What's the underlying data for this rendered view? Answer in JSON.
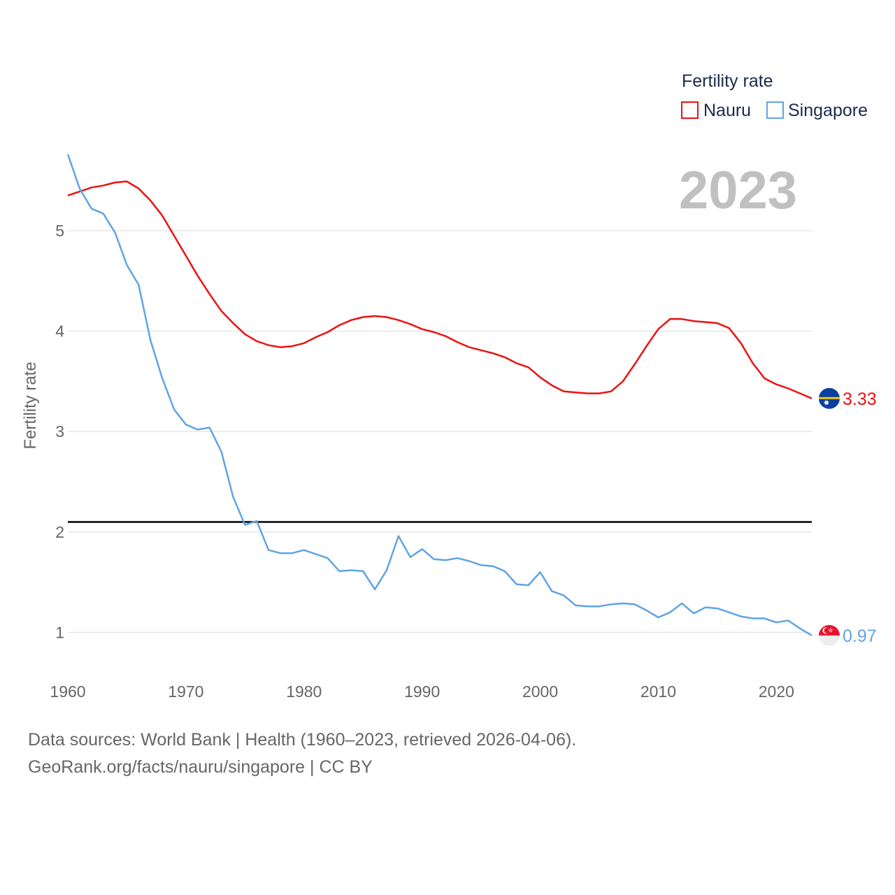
{
  "chart_data": {
    "type": "line",
    "ylabel": "Fertility rate",
    "xlabel": "",
    "year_label": "2023",
    "legend": {
      "title": "Fertility rate",
      "position": "top-right"
    },
    "xlim": [
      1960,
      2023
    ],
    "ylim": [
      0.6,
      5.8
    ],
    "x_ticks": [
      1960,
      1970,
      1980,
      1990,
      2000,
      2010,
      2020
    ],
    "y_ticks": [
      1,
      2,
      3,
      4,
      5
    ],
    "reference_line": {
      "value": 2.1,
      "color": "#000000"
    },
    "x": [
      1960,
      1961,
      1962,
      1963,
      1964,
      1965,
      1966,
      1967,
      1968,
      1969,
      1970,
      1971,
      1972,
      1973,
      1974,
      1975,
      1976,
      1977,
      1978,
      1979,
      1980,
      1981,
      1982,
      1983,
      1984,
      1985,
      1986,
      1987,
      1988,
      1989,
      1990,
      1991,
      1992,
      1993,
      1994,
      1995,
      1996,
      1997,
      1998,
      1999,
      2000,
      2001,
      2002,
      2003,
      2004,
      2005,
      2006,
      2007,
      2008,
      2009,
      2010,
      2011,
      2012,
      2013,
      2014,
      2015,
      2016,
      2017,
      2018,
      2019,
      2020,
      2021,
      2022,
      2023
    ],
    "series": [
      {
        "name": "Nauru",
        "color": "#ee1111",
        "end_label": "3.33",
        "flag": "nauru-flag",
        "values": [
          5.35,
          5.39,
          5.43,
          5.45,
          5.48,
          5.49,
          5.42,
          5.3,
          5.15,
          4.95,
          4.75,
          4.55,
          4.37,
          4.2,
          4.08,
          3.97,
          3.9,
          3.86,
          3.84,
          3.85,
          3.88,
          3.94,
          3.99,
          4.06,
          4.11,
          4.14,
          4.15,
          4.14,
          4.11,
          4.07,
          4.02,
          3.99,
          3.95,
          3.89,
          3.84,
          3.81,
          3.78,
          3.74,
          3.68,
          3.64,
          3.54,
          3.46,
          3.4,
          3.39,
          3.38,
          3.38,
          3.4,
          3.5,
          3.67,
          3.85,
          4.02,
          4.12,
          4.12,
          4.1,
          4.09,
          4.08,
          4.03,
          3.88,
          3.68,
          3.53,
          3.47,
          3.43,
          3.38,
          3.33
        ]
      },
      {
        "name": "Singapore",
        "color": "#5fa4e5",
        "end_label": "0.97",
        "flag": "singapore-flag",
        "values": [
          5.76,
          5.42,
          5.22,
          5.17,
          4.98,
          4.66,
          4.46,
          3.91,
          3.53,
          3.22,
          3.07,
          3.02,
          3.04,
          2.8,
          2.35,
          2.07,
          2.11,
          1.82,
          1.79,
          1.79,
          1.82,
          1.78,
          1.74,
          1.61,
          1.62,
          1.61,
          1.43,
          1.62,
          1.96,
          1.75,
          1.83,
          1.73,
          1.72,
          1.74,
          1.71,
          1.67,
          1.66,
          1.61,
          1.48,
          1.47,
          1.6,
          1.41,
          1.37,
          1.27,
          1.26,
          1.26,
          1.28,
          1.29,
          1.28,
          1.22,
          1.15,
          1.2,
          1.29,
          1.19,
          1.25,
          1.24,
          1.2,
          1.16,
          1.14,
          1.14,
          1.1,
          1.12,
          1.04,
          0.97
        ]
      }
    ]
  },
  "source": {
    "line1": "Data sources: World Bank | Health (1960–2023, retrieved 2026-04-06).",
    "line2": "GeoRank.org/facts/nauru/singapore | CC BY"
  }
}
